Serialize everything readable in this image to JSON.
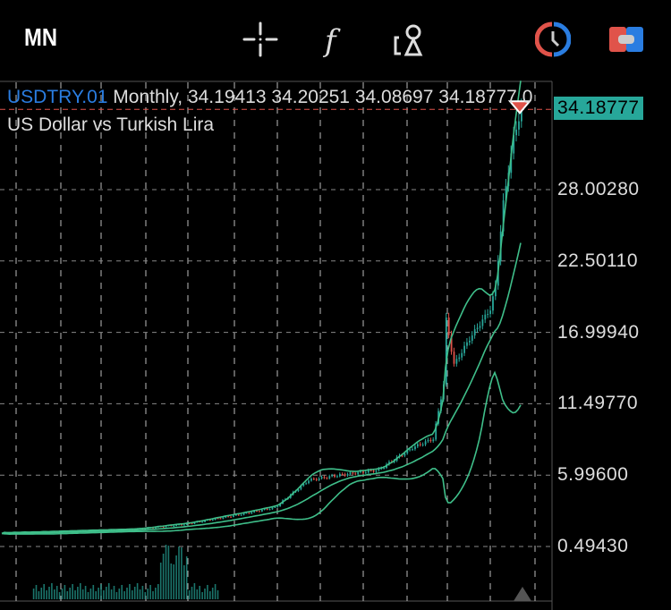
{
  "toolbar": {
    "timeframe": "MN",
    "icons": [
      "crosshair-icon",
      "function-icon",
      "objects-icon",
      "clock-icon",
      "trade-toggle-icon"
    ]
  },
  "header": {
    "symbol": "USDTRY.01",
    "period": "Monthly,",
    "open": "34.19413",
    "high": "34.20251",
    "low": "34.08697",
    "close": "34.18777",
    "extra": "0",
    "description": "US Dollar vs Turkish Lira"
  },
  "colors": {
    "up": "#27a79a",
    "down": "#e0534a",
    "bands": "#3fbf8a",
    "grid": "#bbbbbb",
    "accent": "#2a7de1"
  },
  "chart_data": {
    "type": "candlestick",
    "indicator": "Bollinger Bands",
    "current_price": 34.18777,
    "y_ticks": [
      "28.00280",
      "22.50110",
      "16.99940",
      "11.49770",
      "5.99600",
      "0.49430"
    ],
    "y_tick_values": [
      28.0028,
      22.5011,
      16.9994,
      11.4977,
      5.996,
      0.4943
    ],
    "close_anchors_by_month": [
      [
        0,
        1.5
      ],
      [
        50,
        1.8
      ],
      [
        70,
        2.2
      ],
      [
        90,
        2.9
      ],
      [
        105,
        3.5
      ],
      [
        118,
        5.6
      ],
      [
        130,
        6.0
      ],
      [
        145,
        6.4
      ],
      [
        158,
        8.1
      ],
      [
        166,
        8.8
      ],
      [
        170,
        13.0
      ],
      [
        171,
        18.0
      ],
      [
        174,
        14.5
      ],
      [
        180,
        16.5
      ],
      [
        188,
        18.8
      ],
      [
        190,
        20.5
      ],
      [
        193,
        27.0
      ],
      [
        197,
        32.0
      ],
      [
        200,
        34.19
      ]
    ]
  }
}
